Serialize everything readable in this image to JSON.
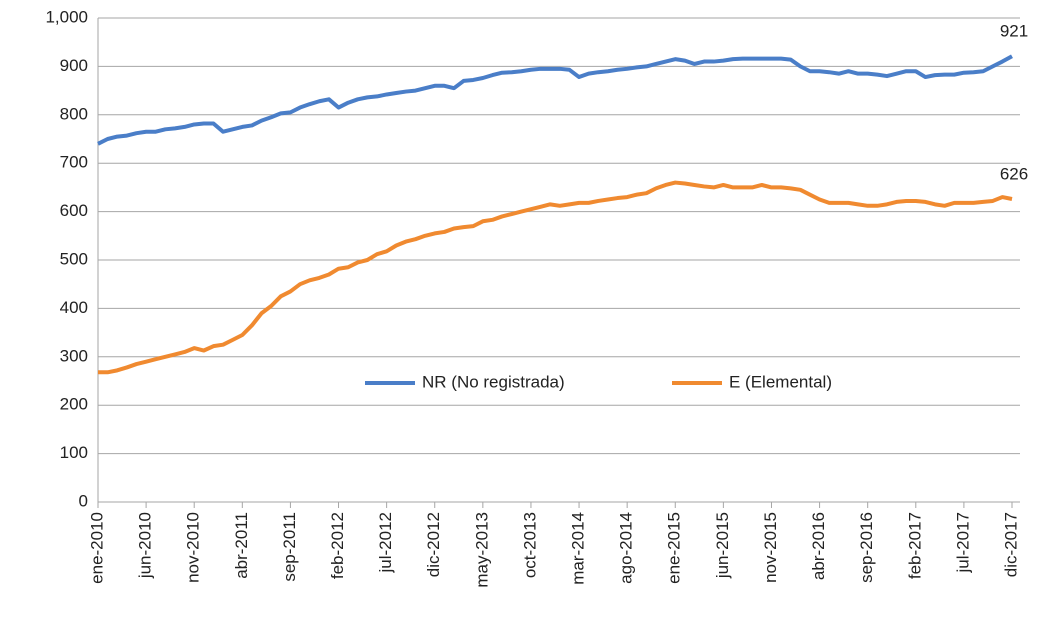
{
  "chart_data": {
    "type": "line",
    "categories": [
      "ene-2010",
      null,
      null,
      null,
      null,
      "jun-2010",
      null,
      null,
      null,
      null,
      "nov-2010",
      null,
      null,
      null,
      null,
      "abr-2011",
      null,
      null,
      null,
      null,
      "sep-2011",
      null,
      null,
      null,
      null,
      "feb-2012",
      null,
      null,
      null,
      null,
      "jul-2012",
      null,
      null,
      null,
      null,
      "dic-2012",
      null,
      null,
      null,
      null,
      "may-2013",
      null,
      null,
      null,
      null,
      "oct-2013",
      null,
      null,
      null,
      null,
      "mar-2014",
      null,
      null,
      null,
      null,
      "ago-2014",
      null,
      null,
      null,
      null,
      "ene-2015",
      null,
      null,
      null,
      null,
      "jun-2015",
      null,
      null,
      null,
      null,
      "nov-2015",
      null,
      null,
      null,
      null,
      "abr-2016",
      null,
      null,
      null,
      null,
      "sep-2016",
      null,
      null,
      null,
      null,
      "feb-2017",
      null,
      null,
      null,
      null,
      "jul-2017",
      null,
      null,
      null,
      null,
      "dic-2017"
    ],
    "series": [
      {
        "name": "NR (No registrada)",
        "color": "#4a7ec8",
        "values": [
          740,
          750,
          755,
          757,
          762,
          765,
          765,
          770,
          772,
          775,
          780,
          782,
          782,
          765,
          770,
          775,
          778,
          788,
          795,
          803,
          805,
          815,
          822,
          828,
          832,
          815,
          825,
          832,
          836,
          838,
          842,
          845,
          848,
          850,
          855,
          860,
          860,
          855,
          870,
          872,
          876,
          882,
          887,
          888,
          890,
          893,
          895,
          895,
          895,
          893,
          878,
          885,
          888,
          890,
          893,
          895,
          898,
          900,
          905,
          910,
          915,
          912,
          905,
          910,
          910,
          912,
          915,
          916,
          916,
          916,
          916,
          916,
          914,
          900,
          890,
          890,
          888,
          885,
          890,
          885,
          885,
          883,
          880,
          885,
          890,
          890,
          878,
          882,
          883,
          883,
          887,
          888,
          890,
          900,
          910,
          921
        ]
      },
      {
        "name": "E (Elemental)",
        "color": "#f08a30",
        "values": [
          268,
          268,
          272,
          278,
          285,
          290,
          295,
          300,
          305,
          310,
          318,
          313,
          322,
          325,
          335,
          345,
          365,
          390,
          405,
          425,
          435,
          450,
          458,
          463,
          470,
          482,
          485,
          495,
          500,
          512,
          518,
          530,
          538,
          543,
          550,
          555,
          558,
          565,
          568,
          570,
          580,
          583,
          590,
          595,
          600,
          605,
          610,
          615,
          612,
          615,
          618,
          618,
          622,
          625,
          628,
          630,
          635,
          638,
          648,
          655,
          660,
          658,
          655,
          652,
          650,
          655,
          650,
          650,
          650,
          655,
          650,
          650,
          648,
          645,
          635,
          625,
          618,
          618,
          618,
          615,
          612,
          612,
          615,
          620,
          622,
          622,
          620,
          615,
          612,
          618,
          618,
          618,
          620,
          622,
          630,
          626
        ]
      }
    ],
    "ylim": [
      0,
      1000
    ],
    "yticks": [
      0,
      100,
      200,
      300,
      400,
      500,
      600,
      700,
      800,
      900,
      {
        "value": 1000,
        "label": "1,000"
      }
    ],
    "grid": true,
    "legend": "center",
    "data_labels": "last"
  }
}
